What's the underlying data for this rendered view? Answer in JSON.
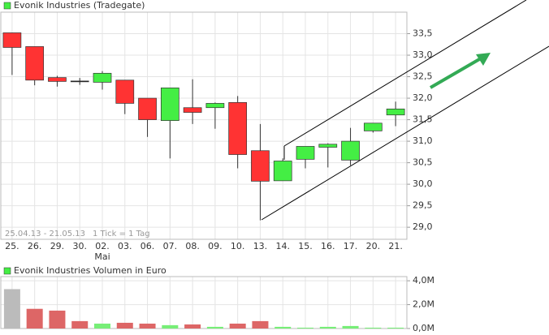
{
  "chart_data": [
    {
      "type": "candlestick",
      "legend": "Evonik Industries (Tradegate)",
      "annotations": [
        "25.04.13 - 21.05.13",
        "1 Tick = 1 Tag"
      ],
      "month_label": "Mai",
      "categories": [
        "25.",
        "26.",
        "29.",
        "30.",
        "02.",
        "03.",
        "06.",
        "07.",
        "08.",
        "09.",
        "10.",
        "13.",
        "14.",
        "15.",
        "16.",
        "17.",
        "20.",
        "21."
      ],
      "open": [
        33.52,
        33.2,
        32.48,
        32.4,
        32.37,
        32.42,
        32.0,
        31.48,
        31.78,
        31.78,
        31.9,
        30.78,
        30.08,
        30.58,
        30.86,
        30.56,
        31.24,
        31.61
      ],
      "high": [
        33.52,
        33.2,
        32.52,
        32.47,
        32.63,
        32.42,
        32.0,
        32.24,
        32.44,
        31.9,
        32.05,
        31.4,
        30.6,
        30.88,
        30.95,
        31.31,
        31.42,
        31.92
      ],
      "low": [
        32.54,
        32.3,
        32.27,
        32.31,
        32.2,
        31.63,
        31.1,
        30.6,
        31.4,
        31.29,
        30.37,
        29.16,
        30.08,
        30.37,
        30.39,
        30.44,
        31.2,
        31.35
      ],
      "close": [
        33.18,
        32.42,
        32.39,
        32.4,
        32.58,
        31.88,
        31.5,
        32.24,
        31.67,
        31.88,
        30.69,
        30.07,
        30.54,
        30.88,
        30.93,
        31.0,
        31.42,
        31.75
      ],
      "up_color": "#44ee44",
      "down_color": "#ff3333",
      "flat_color": "#000000",
      "ylim": [
        28.72,
        34.0
      ],
      "yticks": [
        {
          "value": 29.0,
          "label": "29,0"
        },
        {
          "value": 29.5,
          "label": "29,5"
        },
        {
          "value": 30.0,
          "label": "30,0"
        },
        {
          "value": 30.5,
          "label": "30,5"
        },
        {
          "value": 31.0,
          "label": "31,0"
        },
        {
          "value": 31.5,
          "label": "31,5"
        },
        {
          "value": 32.0,
          "label": "32,0"
        },
        {
          "value": 32.5,
          "label": "32,5"
        },
        {
          "value": 33.0,
          "label": "33,0"
        },
        {
          "value": 33.5,
          "label": "33,5"
        }
      ],
      "grid": true
    },
    {
      "type": "bar",
      "legend": "Evonik Industries Volumen in Euro",
      "values": [
        3300000,
        1650000,
        1500000,
        620000,
        410000,
        480000,
        410000,
        280000,
        340000,
        140000,
        410000,
        620000,
        140000,
        70000,
        140000,
        210000,
        70000,
        70000
      ],
      "colors": [
        "#bbbbbb",
        "#dd6666",
        "#dd6666",
        "#dd6666",
        "#77ee77",
        "#dd6666",
        "#dd6666",
        "#77ee77",
        "#dd6666",
        "#77ee77",
        "#dd6666",
        "#dd6666",
        "#77ee77",
        "#77ee77",
        "#77ee77",
        "#77ee77",
        "#77ee77",
        "#77ee77"
      ],
      "ylim": [
        0,
        4350000
      ],
      "yticks": [
        {
          "value": 0,
          "label": "0,0M"
        },
        {
          "value": 2000000,
          "label": "2,0M"
        },
        {
          "value": 4000000,
          "label": "4,0M"
        }
      ],
      "grid": true
    }
  ]
}
